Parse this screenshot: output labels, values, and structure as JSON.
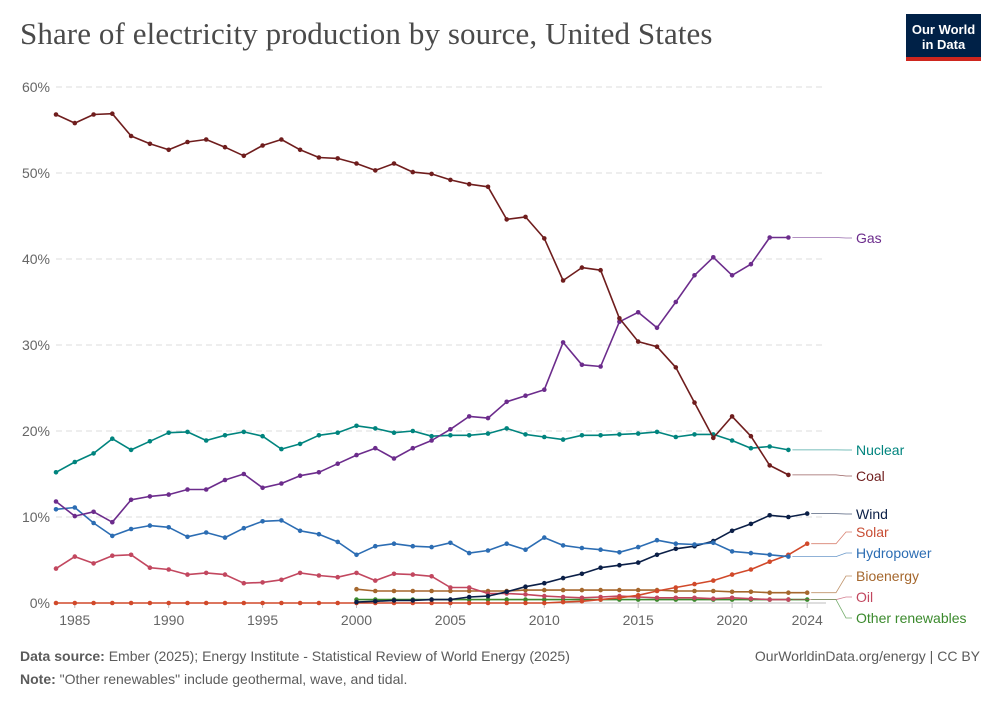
{
  "header": {
    "title": "Share of electricity production by source, United States",
    "logo_line1": "Our World",
    "logo_line2": "in Data"
  },
  "footer": {
    "source_label": "Data source:",
    "source_text": "Ember (2025); Energy Institute - Statistical Review of World Energy (2025)",
    "url_text": "OurWorldinData.org/energy | CC BY",
    "note_label": "Note:",
    "note_text": "\"Other renewables\" include geothermal, wave, and tidal."
  },
  "chart_data": {
    "type": "line",
    "title": "Share of electricity production by source, United States",
    "xlim": [
      1984,
      2025
    ],
    "ylim": [
      0,
      60
    ],
    "y_ticks": [
      0,
      10,
      20,
      30,
      40,
      50,
      60
    ],
    "y_tick_labels": [
      "0%",
      "10%",
      "20%",
      "30%",
      "40%",
      "50%",
      "60%"
    ],
    "x_ticks": [
      1985,
      1990,
      1995,
      2000,
      2005,
      2010,
      2015,
      2020,
      2024
    ],
    "x_tick_labels": [
      "1985",
      "1990",
      "1995",
      "2000",
      "2005",
      "2010",
      "2015",
      "2020",
      "2024"
    ],
    "grid": "horizontal-dashed",
    "legend": "right-end-labels",
    "series": [
      {
        "name": "Coal",
        "color": "#6f1d1d",
        "label_color": "#6f1d1d",
        "start": 1984,
        "values": [
          56.8,
          55.8,
          56.8,
          56.9,
          54.3,
          53.4,
          52.7,
          53.6,
          53.9,
          53.0,
          52.0,
          53.2,
          53.9,
          52.7,
          51.8,
          51.7,
          51.1,
          50.3,
          51.1,
          50.1,
          49.9,
          49.2,
          48.7,
          48.4,
          44.6,
          44.9,
          42.4,
          37.5,
          39.0,
          38.7,
          33.1,
          30.4,
          29.8,
          27.4,
          23.3,
          19.2,
          21.7,
          19.4,
          16.0,
          14.9
        ]
      },
      {
        "name": "Gas",
        "color": "#6c2c8c",
        "label_color": "#6c2c8c",
        "start": 1984,
        "values": [
          11.8,
          10.1,
          10.6,
          9.4,
          12.0,
          12.4,
          12.6,
          13.2,
          13.2,
          14.3,
          15.0,
          13.4,
          13.9,
          14.8,
          15.2,
          16.2,
          17.2,
          18.0,
          16.8,
          18.0,
          18.9,
          20.2,
          21.7,
          21.5,
          23.4,
          24.1,
          24.8,
          30.3,
          27.7,
          27.5,
          32.7,
          33.8,
          32.0,
          35.0,
          38.1,
          40.2,
          38.1,
          39.4,
          42.5,
          42.5
        ]
      },
      {
        "name": "Nuclear",
        "color": "#00847e",
        "label_color": "#00847e",
        "start": 1984,
        "values": [
          15.2,
          16.4,
          17.4,
          19.1,
          17.8,
          18.8,
          19.8,
          19.9,
          18.9,
          19.5,
          19.9,
          19.4,
          17.9,
          18.5,
          19.5,
          19.8,
          20.6,
          20.3,
          19.8,
          20.0,
          19.4,
          19.5,
          19.5,
          19.7,
          20.3,
          19.6,
          19.3,
          19.0,
          19.5,
          19.5,
          19.6,
          19.7,
          19.9,
          19.3,
          19.6,
          19.6,
          18.9,
          18.0,
          18.2,
          17.8
        ]
      },
      {
        "name": "Hydropower",
        "color": "#2c6db3",
        "label_color": "#2c6db3",
        "start": 1984,
        "values": [
          10.9,
          11.1,
          9.3,
          7.8,
          8.6,
          9.0,
          8.8,
          7.7,
          8.2,
          7.6,
          8.7,
          9.5,
          9.6,
          8.4,
          8.0,
          7.1,
          5.6,
          6.6,
          6.9,
          6.6,
          6.5,
          7.0,
          5.8,
          6.1,
          6.9,
          6.2,
          7.6,
          6.7,
          6.4,
          6.2,
          5.9,
          6.5,
          7.3,
          6.9,
          6.8,
          7.0,
          6.0,
          5.8,
          5.6,
          5.4
        ]
      },
      {
        "name": "Oil",
        "color": "#c2475f",
        "label_color": "#c2475f",
        "start": 1984,
        "values": [
          4.0,
          5.4,
          4.6,
          5.5,
          5.6,
          4.1,
          3.9,
          3.3,
          3.5,
          3.3,
          2.3,
          2.4,
          2.7,
          3.5,
          3.2,
          3.0,
          3.5,
          2.6,
          3.4,
          3.3,
          3.1,
          1.8,
          1.8,
          1.1,
          1.1,
          1.0,
          0.8,
          0.7,
          0.6,
          0.7,
          0.8,
          0.7,
          0.6,
          0.6,
          0.6,
          0.5,
          0.6,
          0.5,
          0.4,
          0.4
        ]
      },
      {
        "name": "Bioenergy",
        "color": "#a5672d",
        "label_color": "#a5672d",
        "start": 2000,
        "values": [
          1.6,
          1.4,
          1.4,
          1.4,
          1.4,
          1.4,
          1.4,
          1.4,
          1.4,
          1.5,
          1.5,
          1.5,
          1.5,
          1.5,
          1.5,
          1.5,
          1.5,
          1.4,
          1.4,
          1.4,
          1.3,
          1.3,
          1.2,
          1.2,
          1.2
        ]
      },
      {
        "name": "Wind",
        "color": "#0b1f47",
        "label_color": "#0b1f47",
        "start": 2000,
        "values": [
          0.1,
          0.2,
          0.3,
          0.3,
          0.4,
          0.4,
          0.7,
          0.8,
          1.3,
          1.9,
          2.3,
          2.9,
          3.4,
          4.1,
          4.4,
          4.7,
          5.6,
          6.3,
          6.6,
          7.2,
          8.4,
          9.2,
          10.2,
          10.0,
          10.4
        ]
      },
      {
        "name": "Solar",
        "color": "#d1492a",
        "label_color": "#c84d34",
        "start": 1984,
        "values": [
          0,
          0,
          0,
          0,
          0,
          0,
          0,
          0,
          0,
          0,
          0,
          0,
          0,
          0,
          0,
          0,
          0,
          0,
          0,
          0,
          0,
          0,
          0,
          0,
          0,
          0,
          0,
          0.1,
          0.2,
          0.4,
          0.6,
          0.9,
          1.4,
          1.8,
          2.2,
          2.6,
          3.3,
          3.9,
          4.8,
          5.6,
          6.9
        ]
      },
      {
        "name": "Other renewables",
        "color": "#3b8a2d",
        "label_color": "#3b8a2d",
        "start": 2000,
        "values": [
          0.4,
          0.4,
          0.4,
          0.4,
          0.4,
          0.4,
          0.4,
          0.4,
          0.4,
          0.4,
          0.4,
          0.4,
          0.4,
          0.4,
          0.4,
          0.4,
          0.4,
          0.4,
          0.4,
          0.4,
          0.4,
          0.4,
          0.4,
          0.4,
          0.4
        ]
      }
    ]
  }
}
